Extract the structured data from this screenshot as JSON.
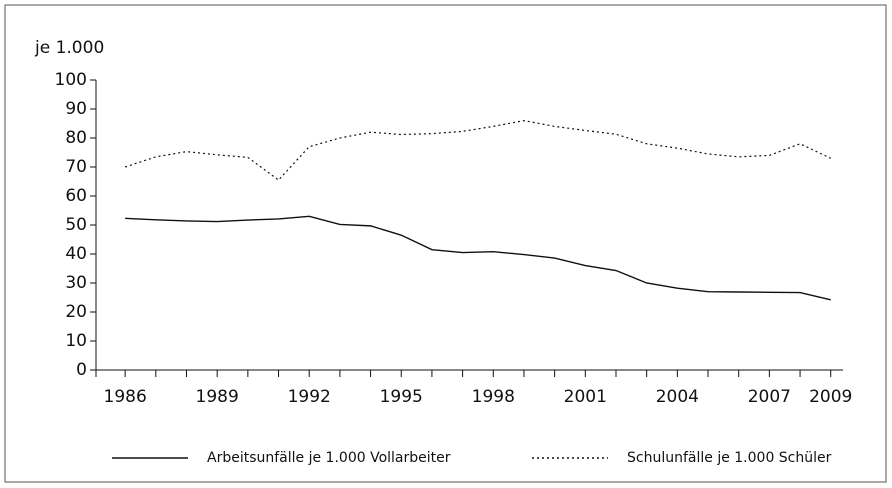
{
  "chart_data": {
    "type": "line",
    "y_label": "je 1.000",
    "x": [
      1986,
      1987,
      1988,
      1989,
      1990,
      1991,
      1992,
      1993,
      1994,
      1995,
      1996,
      1997,
      1998,
      1999,
      2000,
      2001,
      2002,
      2003,
      2004,
      2005,
      2006,
      2007,
      2008,
      2009
    ],
    "series": [
      {
        "name": "Arbeitsunfälle je 1.000 Vollarbeiter",
        "color": "#111111",
        "dash": "solid",
        "values": [
          52.3,
          51.8,
          51.4,
          51.2,
          51.7,
          52.1,
          53,
          50.2,
          49.7,
          46.5,
          41.5,
          40.5,
          40.8,
          39.8,
          38.6,
          36,
          34.3,
          30,
          28.2,
          27,
          26.9,
          26.8,
          26.7,
          24.2
        ]
      },
      {
        "name": "Schulunfälle je 1.000 Schüler",
        "color": "#111111",
        "dash": "dotted",
        "values": [
          70,
          73.5,
          75.3,
          74.2,
          73.3,
          65.5,
          77,
          80,
          82,
          81.2,
          81.5,
          82.3,
          84,
          86,
          84,
          82.6,
          81.3,
          78,
          76.5,
          74.5,
          73.5,
          74,
          78,
          73
        ]
      }
    ],
    "xlim": [
      1985.05,
      2009.4
    ],
    "xticks": [
      1986,
      1989,
      1992,
      1995,
      1998,
      2001,
      2004,
      2007,
      2009
    ],
    "ylim": [
      0,
      100
    ],
    "yticks": [
      0,
      10,
      20,
      30,
      40,
      50,
      60,
      70,
      80,
      90,
      100
    ]
  }
}
